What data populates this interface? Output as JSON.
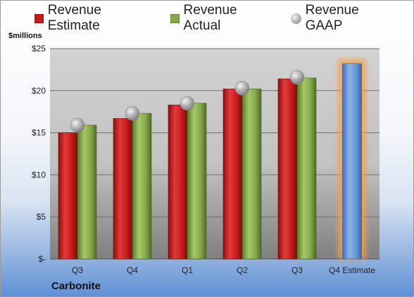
{
  "chart_data": {
    "type": "bar",
    "categories": [
      "Q3",
      "Q4",
      "Q1",
      "Q2",
      "Q3",
      "Q4 Estimate"
    ],
    "series": [
      {
        "name": "Revenue Estimate",
        "values": [
          15.0,
          16.7,
          18.3,
          20.2,
          21.4,
          null
        ],
        "color": "#c41a1a"
      },
      {
        "name": "Revenue Actual",
        "values": [
          15.9,
          17.3,
          18.5,
          20.2,
          21.5,
          null
        ],
        "color": "#86a84a"
      },
      {
        "name": "Revenue GAAP",
        "values": [
          15.9,
          17.3,
          18.5,
          20.3,
          21.6,
          null
        ],
        "color": "#a9a9a9"
      }
    ],
    "forecast": {
      "category": "Q4 Estimate",
      "value": 23.2,
      "color": "#6a9ad8",
      "glow": "#f5a04a"
    },
    "ylabel": "$millions",
    "ylim": [
      0,
      25
    ],
    "yticks": [
      0,
      5,
      10,
      15,
      20,
      25
    ],
    "ytick_labels": [
      "$-",
      "$5",
      "$10",
      "$15",
      "$20",
      "$25"
    ],
    "legend_position": "top",
    "grid": true,
    "plot_background": "#cfcfcf"
  },
  "legend": {
    "estimate": "Revenue Estimate",
    "actual": "Revenue Actual",
    "gaap": "Revenue GAAP"
  },
  "unit_label": "$millions",
  "company": "Carbonite"
}
